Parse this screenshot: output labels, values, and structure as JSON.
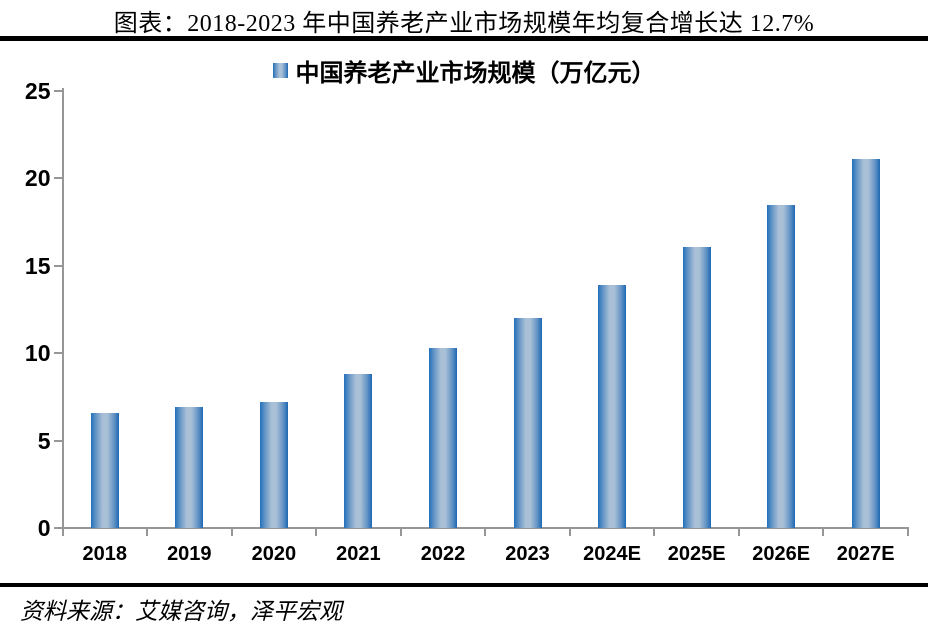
{
  "header": {
    "title": "图表：2018-2023 年中国养老产业市场规模年均复合增长达 12.7%"
  },
  "chart_data": {
    "type": "bar",
    "title": "图表：2018-2023 年中国养老产业市场规模年均复合增长达 12.7%",
    "legend": [
      "中国养老产业市场规模（万亿元）"
    ],
    "legend_position": "top",
    "categories": [
      "2018",
      "2019",
      "2020",
      "2021",
      "2022",
      "2023",
      "2024E",
      "2025E",
      "2026E",
      "2027E"
    ],
    "values": [
      6.6,
      6.9,
      7.2,
      8.8,
      10.3,
      12.0,
      13.9,
      16.1,
      18.5,
      21.1
    ],
    "xlabel": "",
    "ylabel": "",
    "ylim": [
      0,
      25
    ],
    "yticks": [
      0,
      5,
      10,
      15,
      20,
      25
    ],
    "grid": false,
    "colors": {
      "bar_edge": "#1D68B4",
      "bar_center": "#A9C0D7",
      "axis": "#969696",
      "text": "#000000",
      "divider": "#000000"
    }
  },
  "footer": {
    "source": "资料来源：艾媒咨询，泽平宏观"
  }
}
